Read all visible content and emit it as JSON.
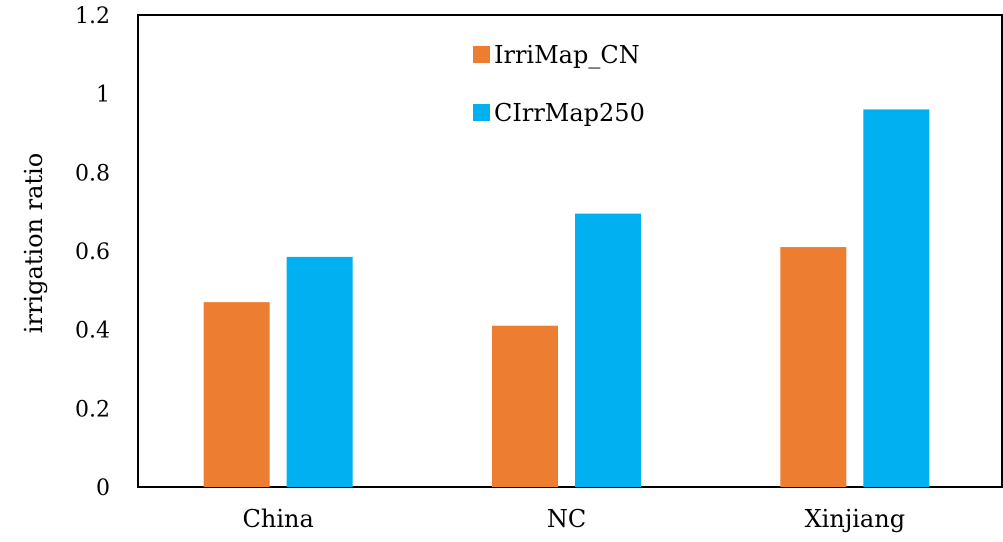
{
  "chart_data": {
    "type": "bar",
    "title": "",
    "xlabel": "",
    "ylabel": "irrigation ratio",
    "ylim": [
      0,
      1.2
    ],
    "yticks": [
      "0",
      "0.2",
      "0.4",
      "0.6",
      "0.8",
      "1",
      "1.2"
    ],
    "categories": [
      "China",
      "NC",
      "Xinjiang"
    ],
    "series": [
      {
        "name": "IrriMap_CN",
        "color": "#ED7D31",
        "values": [
          0.47,
          0.41,
          0.61
        ]
      },
      {
        "name": "CIrrMap250",
        "color": "#00B0F0",
        "values": [
          0.585,
          0.695,
          0.96
        ]
      }
    ],
    "legend": "inside-top-center",
    "grid": false
  }
}
